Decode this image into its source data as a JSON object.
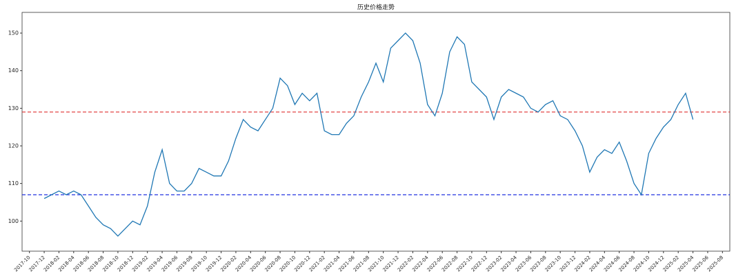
{
  "chart_data": {
    "type": "line",
    "title": "历史价格走势",
    "x": [
      "2017-12",
      "2018-01",
      "2018-02",
      "2018-03",
      "2018-04",
      "2018-05",
      "2018-06",
      "2018-07",
      "2018-08",
      "2018-09",
      "2018-10",
      "2018-11",
      "2018-12",
      "2019-01",
      "2019-02",
      "2019-03",
      "2019-04",
      "2019-05",
      "2019-06",
      "2019-07",
      "2019-08",
      "2019-09",
      "2019-10",
      "2019-11",
      "2019-12",
      "2020-01",
      "2020-02",
      "2020-03",
      "2020-04",
      "2020-05",
      "2020-06",
      "2020-07",
      "2020-08",
      "2020-09",
      "2020-10",
      "2020-11",
      "2020-12",
      "2021-01",
      "2021-02",
      "2021-03",
      "2021-04",
      "2021-05",
      "2021-06",
      "2021-07",
      "2021-08",
      "2021-09",
      "2021-10",
      "2021-11",
      "2021-12",
      "2022-01",
      "2022-02",
      "2022-03",
      "2022-04",
      "2022-05",
      "2022-06",
      "2022-07",
      "2022-08",
      "2022-09",
      "2022-10",
      "2022-11",
      "2022-12",
      "2023-01",
      "2023-02",
      "2023-03",
      "2023-04",
      "2023-05",
      "2023-06",
      "2023-07",
      "2023-08",
      "2023-09",
      "2023-10",
      "2023-11",
      "2023-12",
      "2024-01",
      "2024-02",
      "2024-03",
      "2024-04",
      "2024-05",
      "2024-06",
      "2024-07",
      "2024-08",
      "2024-09",
      "2024-10",
      "2024-11",
      "2024-12",
      "2025-01",
      "2025-02",
      "2025-03",
      "2025-04"
    ],
    "series": [
      {
        "color": "#1f77b4",
        "values": [
          106,
          107,
          108,
          107,
          108,
          107,
          104,
          101,
          99,
          98,
          96,
          98,
          100,
          99,
          104,
          113,
          119,
          110,
          108,
          108,
          110,
          114,
          113,
          112,
          112,
          116,
          122,
          127,
          125,
          124,
          127,
          130,
          138,
          136,
          131,
          134,
          132,
          134,
          124,
          123,
          123,
          126,
          128,
          133,
          137,
          142,
          137,
          146,
          148,
          150,
          148,
          142,
          131,
          128,
          134,
          145,
          149,
          147,
          137,
          135,
          133,
          127,
          133,
          135,
          134,
          133,
          130,
          129,
          131,
          132,
          128,
          127,
          124,
          120,
          113,
          117,
          119,
          118,
          121,
          116,
          110,
          107,
          118,
          122,
          125,
          127,
          131,
          134,
          127
        ]
      }
    ],
    "hlines": [
      {
        "value": 129,
        "color": "#e03030"
      },
      {
        "value": 107,
        "color": "#2030e0"
      }
    ],
    "xlim": [
      "2017-09",
      "2025-09"
    ],
    "xticks": [
      "2017-10",
      "2017-12",
      "2018-02",
      "2018-04",
      "2018-06",
      "2018-08",
      "2018-10",
      "2018-12",
      "2019-02",
      "2019-04",
      "2019-06",
      "2019-08",
      "2019-10",
      "2019-12",
      "2020-02",
      "2020-04",
      "2020-06",
      "2020-08",
      "2020-10",
      "2020-12",
      "2021-02",
      "2021-04",
      "2021-06",
      "2021-08",
      "2021-10",
      "2021-12",
      "2022-02",
      "2022-04",
      "2022-06",
      "2022-08",
      "2022-10",
      "2022-12",
      "2023-02",
      "2023-04",
      "2023-06",
      "2023-08",
      "2023-10",
      "2023-12",
      "2024-02",
      "2024-04",
      "2024-06",
      "2024-08",
      "2024-10",
      "2024-12",
      "2025-02",
      "2025-04",
      "2025-06",
      "2025-08"
    ],
    "ylim": [
      92,
      155.5
    ],
    "yticks": [
      100,
      110,
      120,
      130,
      140,
      150
    ]
  }
}
